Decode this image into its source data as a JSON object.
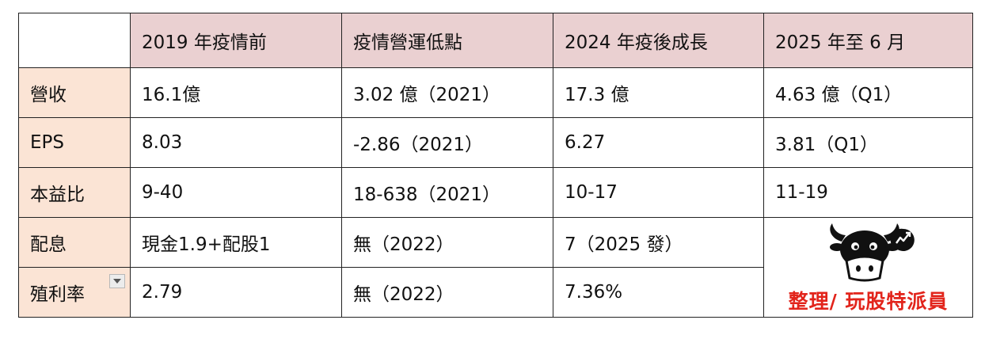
{
  "table": {
    "headers": [
      "",
      "2019 年疫情前",
      "疫情營運低點",
      "2024 年疫後成長",
      "2025 年至 6 月"
    ],
    "rows": [
      {
        "label": "營收",
        "cells": [
          "16.1億",
          "3.02 億（2021）",
          "17.3 億",
          "4.63 億（Q1）"
        ]
      },
      {
        "label": "EPS",
        "cells": [
          "8.03",
          "-2.86（2021）",
          "6.27",
          "3.81（Q1）"
        ]
      },
      {
        "label": "本益比",
        "cells": [
          "9-40",
          "18-638（2021）",
          "10-17",
          "11-19"
        ]
      },
      {
        "label": "配息",
        "cells": [
          "現金1.9+配股1",
          "無（2022）",
          "7（2025 發）"
        ]
      },
      {
        "label": "殖利率",
        "cells": [
          "2.79",
          "無（2022）",
          "7.36%"
        ]
      }
    ]
  },
  "brand": {
    "credit": "整理/ 玩股特派員",
    "logo_icon": "bull-mascot-icon",
    "chat_icon": "chart-up-chat-icon",
    "accent_color": "#e2241b"
  },
  "colors": {
    "header_bg": "#ead0d1",
    "label_bg": "#fbe4d5"
  }
}
